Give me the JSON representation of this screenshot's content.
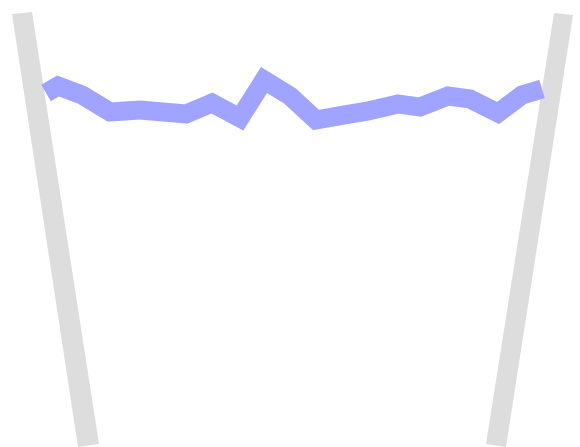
{
  "colors": {
    "background": "#ffffff",
    "walls": "#dddddd",
    "liquid_surface": "#a0a3ff"
  },
  "scene": {
    "objects": [
      "left-wall",
      "right-wall",
      "liquid-surface-line"
    ]
  }
}
